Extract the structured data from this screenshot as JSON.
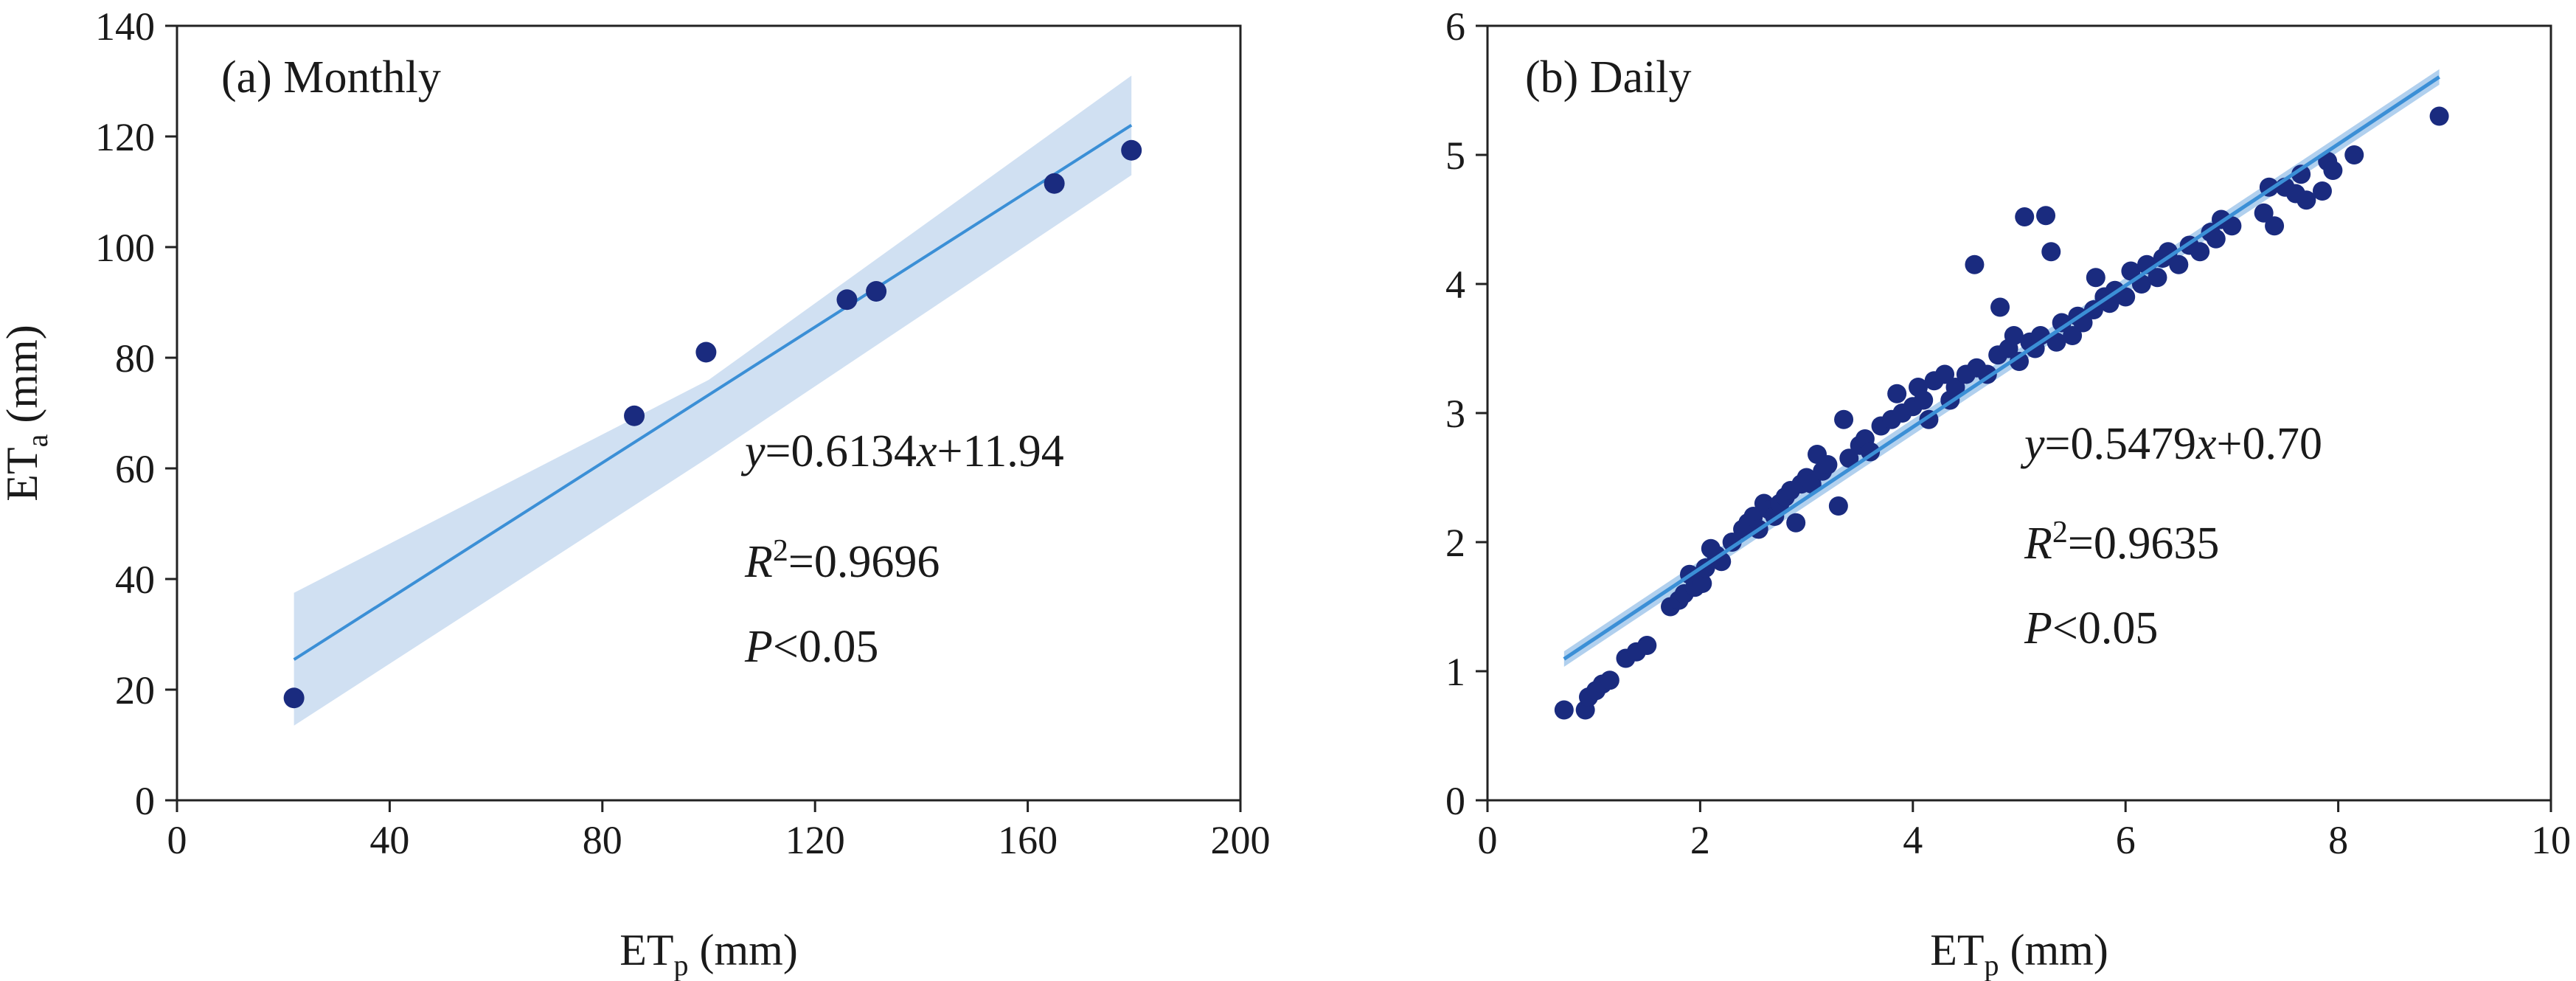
{
  "chart_data": [
    {
      "type": "scatter",
      "id": "a",
      "title": "(a) Monthly",
      "xlabel_base": "ET",
      "xlabel_sub": "p",
      "xlabel_unit": " (mm)",
      "ylabel_base": "ET",
      "ylabel_sub": "a",
      "ylabel_unit": " (mm)",
      "xlim": [
        0,
        200
      ],
      "ylim": [
        0,
        140
      ],
      "xticks": [
        0,
        40,
        80,
        120,
        160,
        200
      ],
      "yticks": [
        0,
        20,
        40,
        60,
        80,
        100,
        120,
        140
      ],
      "points": [
        {
          "x": 22,
          "y": 18.5
        },
        {
          "x": 86,
          "y": 69.5
        },
        {
          "x": 99.5,
          "y": 81
        },
        {
          "x": 126,
          "y": 90.5
        },
        {
          "x": 131.5,
          "y": 92
        },
        {
          "x": 165,
          "y": 111.5
        },
        {
          "x": 179.5,
          "y": 117.5
        }
      ],
      "fit": {
        "slope": 0.6134,
        "intercept": 11.94,
        "x_range": [
          22,
          179.5
        ]
      },
      "ci_band": {
        "x": [
          22,
          100,
          179.5
        ],
        "upper": [
          37.5,
          76,
          131
        ],
        "lower": [
          13.5,
          62,
          113
        ]
      },
      "eq": {
        "y_var": "y",
        "eq_part1": "=0.6134",
        "x_var": "x",
        "eq_part2": "+11.94"
      },
      "r2": {
        "r_var": "R",
        "sup": "2",
        "value": "=0.9696"
      },
      "p": {
        "p_var": "P",
        "value": "<0.05"
      },
      "colors": {
        "point": "#1a2b7f",
        "line": "#3b8fd6",
        "band": "#c8dbf0"
      }
    },
    {
      "type": "scatter",
      "id": "b",
      "title": "(b) Daily",
      "xlabel_base": "ET",
      "xlabel_sub": "p",
      "xlabel_unit": " (mm)",
      "xlim": [
        0,
        10
      ],
      "ylim": [
        0,
        6
      ],
      "xticks": [
        0,
        2,
        4,
        6,
        8,
        10
      ],
      "yticks": [
        0,
        1,
        2,
        3,
        4,
        5,
        6
      ],
      "points": [
        {
          "x": 0.72,
          "y": 0.7
        },
        {
          "x": 0.92,
          "y": 0.7
        },
        {
          "x": 0.95,
          "y": 0.8
        },
        {
          "x": 1.02,
          "y": 0.85
        },
        {
          "x": 1.08,
          "y": 0.9
        },
        {
          "x": 1.15,
          "y": 0.93
        },
        {
          "x": 1.3,
          "y": 1.1
        },
        {
          "x": 1.4,
          "y": 1.15
        },
        {
          "x": 1.5,
          "y": 1.2
        },
        {
          "x": 1.72,
          "y": 1.5
        },
        {
          "x": 1.8,
          "y": 1.55
        },
        {
          "x": 1.85,
          "y": 1.6
        },
        {
          "x": 1.9,
          "y": 1.75
        },
        {
          "x": 1.95,
          "y": 1.65
        },
        {
          "x": 2.02,
          "y": 1.68
        },
        {
          "x": 2.05,
          "y": 1.8
        },
        {
          "x": 2.1,
          "y": 1.95
        },
        {
          "x": 2.15,
          "y": 1.9
        },
        {
          "x": 2.2,
          "y": 1.85
        },
        {
          "x": 2.3,
          "y": 2.0
        },
        {
          "x": 2.4,
          "y": 2.1
        },
        {
          "x": 2.45,
          "y": 2.15
        },
        {
          "x": 2.5,
          "y": 2.2
        },
        {
          "x": 2.55,
          "y": 2.1
        },
        {
          "x": 2.6,
          "y": 2.3
        },
        {
          "x": 2.65,
          "y": 2.25
        },
        {
          "x": 2.7,
          "y": 2.2
        },
        {
          "x": 2.75,
          "y": 2.3
        },
        {
          "x": 2.8,
          "y": 2.35
        },
        {
          "x": 2.85,
          "y": 2.4
        },
        {
          "x": 2.9,
          "y": 2.15
        },
        {
          "x": 2.95,
          "y": 2.45
        },
        {
          "x": 3.0,
          "y": 2.5
        },
        {
          "x": 3.05,
          "y": 2.45
        },
        {
          "x": 3.1,
          "y": 2.68
        },
        {
          "x": 3.15,
          "y": 2.55
        },
        {
          "x": 3.2,
          "y": 2.6
        },
        {
          "x": 3.3,
          "y": 2.28
        },
        {
          "x": 3.35,
          "y": 2.95
        },
        {
          "x": 3.4,
          "y": 2.65
        },
        {
          "x": 3.5,
          "y": 2.75
        },
        {
          "x": 3.55,
          "y": 2.8
        },
        {
          "x": 3.6,
          "y": 2.7
        },
        {
          "x": 3.7,
          "y": 2.9
        },
        {
          "x": 3.8,
          "y": 2.95
        },
        {
          "x": 3.85,
          "y": 3.15
        },
        {
          "x": 3.9,
          "y": 3.0
        },
        {
          "x": 4.0,
          "y": 3.05
        },
        {
          "x": 4.05,
          "y": 3.2
        },
        {
          "x": 4.1,
          "y": 3.1
        },
        {
          "x": 4.15,
          "y": 2.95
        },
        {
          "x": 4.2,
          "y": 3.25
        },
        {
          "x": 4.3,
          "y": 3.3
        },
        {
          "x": 4.35,
          "y": 3.1
        },
        {
          "x": 4.4,
          "y": 3.2
        },
        {
          "x": 4.5,
          "y": 3.3
        },
        {
          "x": 4.58,
          "y": 4.15
        },
        {
          "x": 4.6,
          "y": 3.35
        },
        {
          "x": 4.7,
          "y": 3.3
        },
        {
          "x": 4.8,
          "y": 3.45
        },
        {
          "x": 4.82,
          "y": 3.82
        },
        {
          "x": 4.9,
          "y": 3.5
        },
        {
          "x": 4.95,
          "y": 3.6
        },
        {
          "x": 5.0,
          "y": 3.4
        },
        {
          "x": 5.05,
          "y": 4.52
        },
        {
          "x": 5.1,
          "y": 3.55
        },
        {
          "x": 5.15,
          "y": 3.5
        },
        {
          "x": 5.2,
          "y": 3.6
        },
        {
          "x": 5.25,
          "y": 4.53
        },
        {
          "x": 5.3,
          "y": 4.25
        },
        {
          "x": 5.35,
          "y": 3.55
        },
        {
          "x": 5.4,
          "y": 3.7
        },
        {
          "x": 5.5,
          "y": 3.6
        },
        {
          "x": 5.55,
          "y": 3.75
        },
        {
          "x": 5.6,
          "y": 3.7
        },
        {
          "x": 5.7,
          "y": 3.8
        },
        {
          "x": 5.72,
          "y": 4.05
        },
        {
          "x": 5.8,
          "y": 3.9
        },
        {
          "x": 5.85,
          "y": 3.85
        },
        {
          "x": 5.9,
          "y": 3.95
        },
        {
          "x": 6.0,
          "y": 3.9
        },
        {
          "x": 6.05,
          "y": 4.1
        },
        {
          "x": 6.15,
          "y": 4.0
        },
        {
          "x": 6.2,
          "y": 4.15
        },
        {
          "x": 6.3,
          "y": 4.05
        },
        {
          "x": 6.35,
          "y": 4.2
        },
        {
          "x": 6.4,
          "y": 4.25
        },
        {
          "x": 6.5,
          "y": 4.15
        },
        {
          "x": 6.6,
          "y": 4.3
        },
        {
          "x": 6.7,
          "y": 4.25
        },
        {
          "x": 6.8,
          "y": 4.4
        },
        {
          "x": 6.85,
          "y": 4.35
        },
        {
          "x": 6.9,
          "y": 4.5
        },
        {
          "x": 7.0,
          "y": 4.45
        },
        {
          "x": 7.3,
          "y": 4.55
        },
        {
          "x": 7.35,
          "y": 4.75
        },
        {
          "x": 7.4,
          "y": 4.45
        },
        {
          "x": 7.5,
          "y": 4.75
        },
        {
          "x": 7.6,
          "y": 4.7
        },
        {
          "x": 7.65,
          "y": 4.85
        },
        {
          "x": 7.7,
          "y": 4.65
        },
        {
          "x": 7.85,
          "y": 4.72
        },
        {
          "x": 7.9,
          "y": 4.95
        },
        {
          "x": 7.95,
          "y": 4.88
        },
        {
          "x": 8.15,
          "y": 5.0
        },
        {
          "x": 8.95,
          "y": 5.3
        }
      ],
      "fit": {
        "slope": 0.5479,
        "intercept": 0.7,
        "x_range": [
          0.72,
          8.95
        ]
      },
      "eq": {
        "y_var": "y",
        "eq_part1": "=0.5479",
        "x_var": "x",
        "eq_part2": "+0.70"
      },
      "r2": {
        "r_var": "R",
        "sup": "2",
        "value": "=0.9635"
      },
      "p": {
        "p_var": "P",
        "value": "<0.05"
      },
      "colors": {
        "point": "#1a2b7f",
        "line": "#3b8fd6",
        "band": "#a9cbec"
      }
    }
  ]
}
